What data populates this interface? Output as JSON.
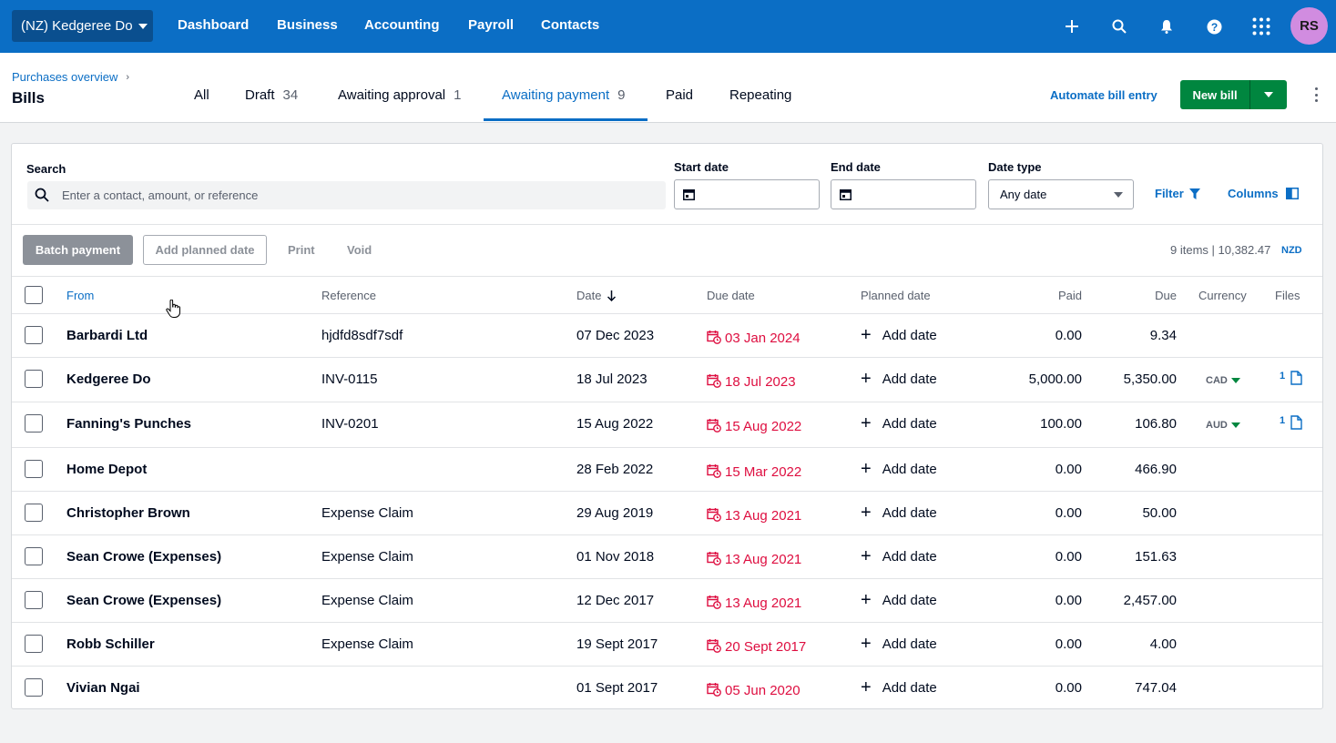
{
  "topnav": {
    "org": "(NZ) Kedgeree Do",
    "links": [
      "Dashboard",
      "Business",
      "Accounting",
      "Payroll",
      "Contacts"
    ],
    "avatar": "RS"
  },
  "header": {
    "breadcrumb": "Purchases overview",
    "title": "Bills",
    "tabs": [
      {
        "label": "All",
        "count": ""
      },
      {
        "label": "Draft",
        "count": "34"
      },
      {
        "label": "Awaiting approval",
        "count": "1"
      },
      {
        "label": "Awaiting payment",
        "count": "9"
      },
      {
        "label": "Paid",
        "count": ""
      },
      {
        "label": "Repeating",
        "count": ""
      }
    ],
    "automate": "Automate bill entry",
    "new_bill": "New bill"
  },
  "filters": {
    "search_label": "Search",
    "search_placeholder": "Enter a contact, amount, or reference",
    "start_label": "Start date",
    "end_label": "End date",
    "date_type_label": "Date type",
    "date_type_value": "Any date",
    "filter": "Filter",
    "columns": "Columns"
  },
  "actions": {
    "batch": "Batch payment",
    "planned": "Add planned date",
    "print": "Print",
    "void": "Void",
    "summary": "9 items | 10,382.47",
    "currency": "NZD"
  },
  "table": {
    "headers": {
      "from": "From",
      "reference": "Reference",
      "date": "Date",
      "due_date": "Due date",
      "planned": "Planned date",
      "paid": "Paid",
      "due": "Due",
      "currency": "Currency",
      "files": "Files"
    },
    "add_date": "Add date",
    "rows": [
      {
        "from": "Barbardi Ltd",
        "reference": "hjdfd8sdf7sdf",
        "date": "07 Dec 2023",
        "due_date": "03 Jan 2024",
        "paid": "0.00",
        "due": "9.34",
        "currency": "",
        "files": ""
      },
      {
        "from": "Kedgeree Do",
        "reference": "INV-0115",
        "date": "18 Jul 2023",
        "due_date": "18 Jul 2023",
        "paid": "5,000.00",
        "due": "5,350.00",
        "currency": "CAD",
        "files": "1"
      },
      {
        "from": "Fanning's Punches",
        "reference": "INV-0201",
        "date": "15 Aug 2022",
        "due_date": "15 Aug 2022",
        "paid": "100.00",
        "due": "106.80",
        "currency": "AUD",
        "files": "1"
      },
      {
        "from": "Home Depot",
        "reference": "",
        "date": "28 Feb 2022",
        "due_date": "15 Mar 2022",
        "paid": "0.00",
        "due": "466.90",
        "currency": "",
        "files": ""
      },
      {
        "from": "Christopher Brown",
        "reference": "Expense Claim",
        "date": "29 Aug 2019",
        "due_date": "13 Aug 2021",
        "paid": "0.00",
        "due": "50.00",
        "currency": "",
        "files": ""
      },
      {
        "from": "Sean Crowe (Expenses)",
        "reference": "Expense Claim",
        "date": "01 Nov 2018",
        "due_date": "13 Aug 2021",
        "paid": "0.00",
        "due": "151.63",
        "currency": "",
        "files": ""
      },
      {
        "from": "Sean Crowe (Expenses)",
        "reference": "Expense Claim",
        "date": "12 Dec 2017",
        "due_date": "13 Aug 2021",
        "paid": "0.00",
        "due": "2,457.00",
        "currency": "",
        "files": ""
      },
      {
        "from": "Robb Schiller",
        "reference": "Expense Claim",
        "date": "19 Sept 2017",
        "due_date": "20 Sept 2017",
        "paid": "0.00",
        "due": "4.00",
        "currency": "",
        "files": ""
      },
      {
        "from": "Vivian Ngai",
        "reference": "",
        "date": "01 Sept 2017",
        "due_date": "05 Jun 2020",
        "paid": "0.00",
        "due": "747.04",
        "currency": "",
        "files": ""
      }
    ]
  },
  "colors": {
    "brand_blue": "#0b6ec5",
    "overdue_red": "#de0e40",
    "primary_green": "#00863f"
  }
}
